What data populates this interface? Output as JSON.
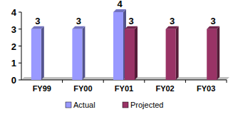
{
  "chart_data": {
    "type": "bar",
    "categories": [
      "FY99",
      "FY00",
      "FY01",
      "FY02",
      "FY03"
    ],
    "series": [
      {
        "name": "Actual",
        "color": "#9999ff",
        "values": [
          3,
          3,
          4,
          null,
          null
        ]
      },
      {
        "name": "Projected",
        "color": "#993366",
        "values": [
          null,
          null,
          3,
          3,
          3
        ]
      }
    ],
    "ylim": [
      0,
      4
    ],
    "yticks": [
      0,
      1,
      2,
      3,
      4
    ],
    "data_labels": true,
    "legend": "bottom"
  }
}
